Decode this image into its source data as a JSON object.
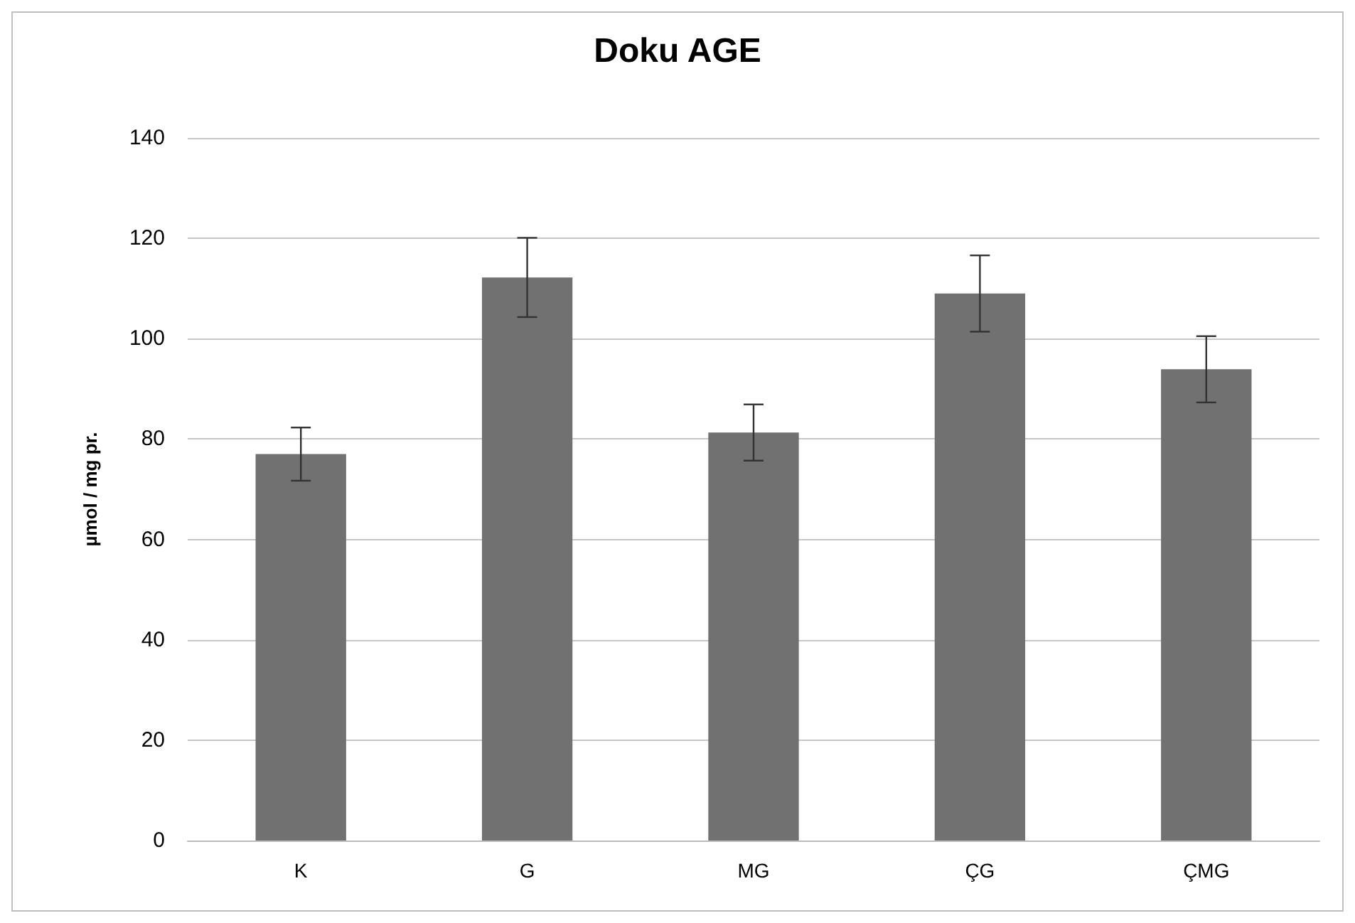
{
  "chart_data": {
    "type": "bar",
    "title": "Doku AGE",
    "ylabel": "µmol / mg pr.",
    "categories": [
      "K",
      "G",
      "MG",
      "ÇG",
      "ÇMG"
    ],
    "values": [
      77.0,
      112.2,
      81.3,
      109.0,
      93.9
    ],
    "errors": [
      5.3,
      7.9,
      5.6,
      7.6,
      6.6
    ],
    "color": "#717171",
    "ylim": [
      0,
      140
    ],
    "yticks": [
      0,
      20,
      40,
      60,
      80,
      100,
      120,
      140
    ],
    "grid": "y"
  }
}
